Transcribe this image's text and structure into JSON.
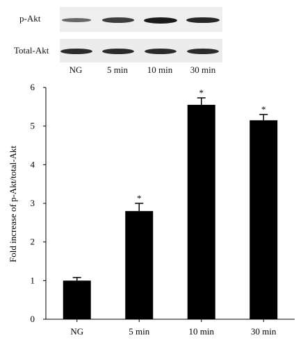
{
  "blot": {
    "rows": [
      {
        "label": "p-Akt",
        "intensities": [
          0.35,
          0.7,
          1.0,
          0.9
        ]
      },
      {
        "label": "Total-Akt",
        "intensities": [
          0.85,
          0.85,
          0.85,
          0.85
        ]
      }
    ],
    "lanes": [
      "NG",
      "5 min",
      "10 min",
      "30 min"
    ]
  },
  "chart_data": {
    "type": "bar",
    "categories": [
      "NG",
      "5 min",
      "10 min",
      "30 min"
    ],
    "values": [
      1.0,
      2.8,
      5.55,
      5.15
    ],
    "errors": [
      0.08,
      0.2,
      0.18,
      0.15
    ],
    "significance": [
      "",
      "*",
      "*",
      "*"
    ],
    "ylabel": "Fold increase of p-Akt/total-Akt",
    "xlabel": "",
    "ylim": [
      0,
      6
    ],
    "yticks": [
      0,
      1,
      2,
      3,
      4,
      5,
      6
    ],
    "bar_color": "#000000",
    "grid": false
  }
}
